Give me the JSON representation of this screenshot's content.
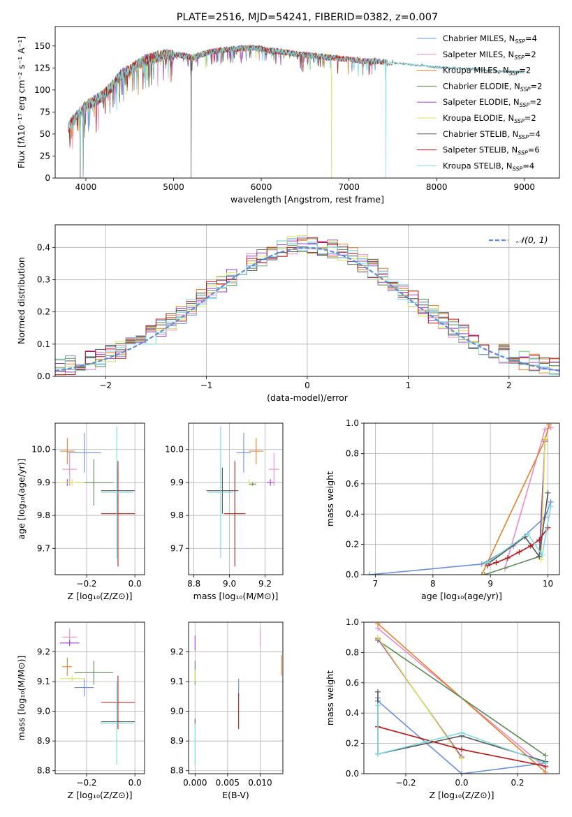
{
  "colors": {
    "chabrier_miles": "#6a8fd8",
    "salpeter_miles": "#e98bc3",
    "kroupa_miles": "#e0812b",
    "chabrier_elodie": "#5a8a55",
    "salpeter_elodie": "#9b3fc8",
    "kroupa_elodie": "#d8e25a",
    "chabrier_stelib": "#555555",
    "salpeter_stelib": "#b21a1a",
    "kroupa_stelib": "#7fd8e0"
  },
  "chart_data": [
    {
      "id": "spectrum",
      "type": "line",
      "title": "PLATE=2516, MJD=54241, FIBERID=0382, z=0.007",
      "xlabel": "wavelength [Angstrom, rest frame]",
      "ylabel": "Flux [fλ10⁻¹⁷ erg cm⁻² s⁻¹ A⁻¹]",
      "xlim": [
        3650,
        9400
      ],
      "ylim": [
        0,
        172
      ],
      "xticks": [
        4000,
        5000,
        6000,
        7000,
        8000,
        9000
      ],
      "yticks": [
        0,
        25,
        50,
        75,
        100,
        125,
        150
      ],
      "grid": false,
      "legend_position": "top-right",
      "series": [
        {
          "name": "Chabrier MILES, N_SSP=4",
          "key": "chabrier_miles",
          "x_range": [
            3800,
            7400
          ]
        },
        {
          "name": "Salpeter MILES, N_SSP=2",
          "key": "salpeter_miles",
          "x_range": [
            3800,
            7400
          ]
        },
        {
          "name": "Kroupa MILES, N_SSP=2",
          "key": "kroupa_miles",
          "x_range": [
            3800,
            7450
          ]
        },
        {
          "name": "Chabrier ELODIE, N_SSP=2",
          "key": "chabrier_elodie",
          "x_range": [
            3900,
            6800
          ]
        },
        {
          "name": "Salpeter ELODIE, N_SSP=2",
          "key": "salpeter_elodie",
          "x_range": [
            3900,
            6800
          ]
        },
        {
          "name": "Kroupa ELODIE, N_SSP=2",
          "key": "kroupa_elodie",
          "x_range": [
            3900,
            6800
          ]
        },
        {
          "name": "Chabrier STELIB, N_SSP=4",
          "key": "chabrier_stelib",
          "x_range": [
            3800,
            9000
          ]
        },
        {
          "name": "Salpeter STELIB, N_SSP=6",
          "key": "salpeter_stelib",
          "x_range": [
            3800,
            7400
          ]
        },
        {
          "name": "Kroupa STELIB, N_SSP=4",
          "key": "kroupa_stelib",
          "x_range": [
            3800,
            9000
          ]
        }
      ],
      "continuum": [
        [
          3800,
          58
        ],
        [
          3900,
          72
        ],
        [
          4000,
          82
        ],
        [
          4100,
          88
        ],
        [
          4200,
          95
        ],
        [
          4300,
          105
        ],
        [
          4400,
          118
        ],
        [
          4500,
          123
        ],
        [
          4600,
          130
        ],
        [
          4700,
          135
        ],
        [
          4800,
          138
        ],
        [
          4900,
          140
        ],
        [
          5000,
          140
        ],
        [
          5100,
          140
        ],
        [
          5200,
          137
        ],
        [
          5300,
          140
        ],
        [
          5400,
          143
        ],
        [
          5500,
          145
        ],
        [
          5600,
          146
        ],
        [
          5700,
          147
        ],
        [
          5800,
          148
        ],
        [
          5900,
          148
        ],
        [
          6000,
          147
        ],
        [
          6100,
          145
        ],
        [
          6200,
          144
        ],
        [
          6300,
          143
        ],
        [
          6400,
          141
        ],
        [
          6500,
          140
        ],
        [
          6600,
          139
        ],
        [
          6700,
          138
        ],
        [
          6800,
          137
        ],
        [
          6900,
          136
        ],
        [
          7000,
          135
        ],
        [
          7100,
          134
        ],
        [
          7200,
          133
        ],
        [
          7300,
          133
        ],
        [
          7400,
          132
        ],
        [
          7600,
          130
        ],
        [
          7800,
          128
        ],
        [
          8000,
          126
        ],
        [
          8200,
          125
        ],
        [
          8400,
          124
        ],
        [
          8600,
          122
        ],
        [
          8800,
          121
        ],
        [
          9000,
          120
        ]
      ],
      "dips": [
        [
          3934,
          0
        ],
        [
          3969,
          0
        ],
        [
          5200,
          0
        ],
        [
          6800,
          0
        ],
        [
          7420,
          0
        ]
      ]
    },
    {
      "id": "residuals",
      "type": "histogram",
      "xlabel": "(data-model)/error",
      "ylabel": "Normed distribution",
      "xlim": [
        -2.5,
        2.5
      ],
      "ylim": [
        0,
        0.47
      ],
      "xticks": [
        -2,
        -1,
        0,
        1,
        2
      ],
      "yticks": [
        0.0,
        0.1,
        0.2,
        0.3,
        0.4
      ],
      "grid": true,
      "legend_position": "top-right",
      "reference": {
        "label": "𝒩(0, 1)",
        "mean": 0,
        "sigma": 1
      }
    },
    {
      "id": "age-vs-Z",
      "type": "scatter",
      "xlabel": "Z [log₁₀(Z/Z⊙)]",
      "ylabel": "age  [log₁₀(age/yr)]",
      "xlim": [
        -0.33,
        0.04
      ],
      "ylim": [
        9.62,
        10.08
      ],
      "xticks": [
        -0.2,
        0.0
      ],
      "yticks": [
        9.7,
        9.8,
        9.9,
        10.0
      ],
      "grid": true,
      "points": [
        {
          "key": "chabrier_miles",
          "x": -0.21,
          "y": 9.99,
          "xerr": 0.07,
          "yerr": 0.06
        },
        {
          "key": "salpeter_miles",
          "x": -0.27,
          "y": 9.94,
          "xerr": 0.03,
          "yerr": 0.05
        },
        {
          "key": "kroupa_miles",
          "x": -0.28,
          "y": 9.995,
          "xerr": 0.03,
          "yerr": 0.04
        },
        {
          "key": "chabrier_elodie",
          "x": -0.17,
          "y": 9.9,
          "xerr": 0.08,
          "yerr": 0.07
        },
        {
          "key": "salpeter_elodie",
          "x": -0.28,
          "y": 9.9,
          "xerr": 0.02,
          "yerr": 0.01
        },
        {
          "key": "kroupa_elodie",
          "x": -0.26,
          "y": 9.9,
          "xerr": 0.05,
          "yerr": 0.01
        },
        {
          "key": "chabrier_stelib",
          "x": -0.07,
          "y": 9.875,
          "xerr": 0.07,
          "yerr": 0.07
        },
        {
          "key": "salpeter_stelib",
          "x": -0.07,
          "y": 9.805,
          "xerr": 0.07,
          "yerr": 0.16
        },
        {
          "key": "kroupa_stelib",
          "x": -0.075,
          "y": 9.87,
          "xerr": 0.065,
          "yerr": 0.2
        }
      ]
    },
    {
      "id": "age-vs-mass",
      "type": "scatter",
      "xlabel": "mass [log₁₀(M/M⊙)]",
      "ylabel": "",
      "xlim": [
        8.77,
        9.3
      ],
      "ylim": [
        9.62,
        10.08
      ],
      "xticks": [
        8.8,
        9.0,
        9.2
      ],
      "yticks": [
        9.7,
        9.8,
        9.9,
        10.0
      ],
      "grid": true,
      "points": [
        {
          "key": "chabrier_miles",
          "x": 9.08,
          "y": 9.99,
          "xerr": 0.04,
          "yerr": 0.06
        },
        {
          "key": "salpeter_miles",
          "x": 9.25,
          "y": 9.94,
          "xerr": 0.03,
          "yerr": 0.05
        },
        {
          "key": "kroupa_miles",
          "x": 9.15,
          "y": 9.995,
          "xerr": 0.04,
          "yerr": 0.04
        },
        {
          "key": "chabrier_elodie",
          "x": 9.13,
          "y": 9.895,
          "xerr": 0.02,
          "yerr": 0.005
        },
        {
          "key": "salpeter_elodie",
          "x": 9.23,
          "y": 9.9,
          "xerr": 0.02,
          "yerr": 0.01
        },
        {
          "key": "kroupa_elodie",
          "x": 9.11,
          "y": 9.9,
          "xerr": 0.01,
          "yerr": 0.01
        },
        {
          "key": "chabrier_stelib",
          "x": 8.96,
          "y": 9.875,
          "xerr": 0.09,
          "yerr": 0.07
        },
        {
          "key": "salpeter_stelib",
          "x": 9.03,
          "y": 9.805,
          "xerr": 0.06,
          "yerr": 0.16
        },
        {
          "key": "kroupa_stelib",
          "x": 8.95,
          "y": 9.87,
          "xerr": 0.07,
          "yerr": 0.2
        }
      ]
    },
    {
      "id": "massweight-vs-age",
      "type": "line",
      "xlabel": "age  [log₁₀(age/yr)]",
      "ylabel": "mass weight",
      "xlim": [
        6.8,
        10.2
      ],
      "ylim": [
        0,
        1.0
      ],
      "xticks": [
        7,
        8,
        9,
        10
      ],
      "yticks": [
        0.0,
        0.2,
        0.4,
        0.6,
        0.8,
        1.0
      ],
      "grid": true,
      "series": [
        {
          "key": "chabrier_miles",
          "x": [
            6.9,
            8.85,
            9.4,
            9.95,
            10.05
          ],
          "y": [
            0.0,
            0.07,
            0.19,
            0.38,
            0.48
          ]
        },
        {
          "key": "salpeter_miles",
          "x": [
            9.25,
            9.95,
            10.05
          ],
          "y": [
            0.04,
            0.96,
            0.97
          ]
        },
        {
          "key": "kroupa_miles",
          "x": [
            8.85,
            9.95,
            10.02
          ],
          "y": [
            0.0,
            0.89,
            0.99
          ]
        },
        {
          "key": "chabrier_elodie",
          "x": [
            8.9,
            9.85,
            9.95
          ],
          "y": [
            0.0,
            0.12,
            0.88
          ]
        },
        {
          "key": "salpeter_elodie",
          "x": [
            9.85,
            9.95
          ],
          "y": [
            0.12,
            0.88
          ]
        },
        {
          "key": "kroupa_elodie",
          "x": [
            9.88,
            9.95
          ],
          "y": [
            0.1,
            0.9
          ]
        },
        {
          "key": "chabrier_stelib",
          "x": [
            8.95,
            9.6,
            9.85,
            10.0
          ],
          "y": [
            0.07,
            0.25,
            0.12,
            0.54
          ]
        },
        {
          "key": "salpeter_stelib",
          "x": [
            8.95,
            9.1,
            9.3,
            9.5,
            9.7,
            9.85,
            10.0
          ],
          "y": [
            0.06,
            0.08,
            0.11,
            0.15,
            0.19,
            0.23,
            0.31
          ]
        },
        {
          "key": "kroupa_stelib",
          "x": [
            8.95,
            9.65,
            9.9,
            10.05
          ],
          "y": [
            0.08,
            0.27,
            0.13,
            0.45
          ]
        }
      ]
    },
    {
      "id": "mass-vs-Z",
      "type": "scatter",
      "xlabel": "Z [log₁₀(Z/Z⊙)]",
      "ylabel": "mass [log₁₀(M/M⊙)]",
      "xlim": [
        -0.33,
        0.04
      ],
      "ylim": [
        8.79,
        9.3
      ],
      "xticks": [
        -0.2,
        0.0
      ],
      "yticks": [
        8.8,
        8.9,
        9.0,
        9.1,
        9.2
      ],
      "grid": true,
      "points": [
        {
          "key": "chabrier_miles",
          "x": -0.21,
          "y": 9.08,
          "xerr": 0.04,
          "yerr": 0.03
        },
        {
          "key": "salpeter_miles",
          "x": -0.27,
          "y": 9.25,
          "xerr": 0.03,
          "yerr": 0.03
        },
        {
          "key": "kroupa_miles",
          "x": -0.28,
          "y": 9.15,
          "xerr": 0.02,
          "yerr": 0.03
        },
        {
          "key": "chabrier_elodie",
          "x": -0.17,
          "y": 9.13,
          "xerr": 0.08,
          "yerr": 0.04
        },
        {
          "key": "salpeter_elodie",
          "x": -0.27,
          "y": 9.23,
          "xerr": 0.04,
          "yerr": 0.01
        },
        {
          "key": "kroupa_elodie",
          "x": -0.26,
          "y": 9.11,
          "xerr": 0.05,
          "yerr": 0.01
        },
        {
          "key": "chabrier_stelib",
          "x": -0.07,
          "y": 8.965,
          "xerr": 0.07,
          "yerr": 0.01
        },
        {
          "key": "salpeter_stelib",
          "x": -0.07,
          "y": 9.03,
          "xerr": 0.07,
          "yerr": 0.09
        },
        {
          "key": "kroupa_stelib",
          "x": -0.075,
          "y": 8.96,
          "xerr": 0.07,
          "yerr": 0.14
        }
      ]
    },
    {
      "id": "mass-vs-EBV",
      "type": "scatter",
      "xlabel": "E(B-V)",
      "ylabel": "",
      "xlim": [
        -0.001,
        0.0135
      ],
      "ylim": [
        8.79,
        9.3
      ],
      "xticks": [
        0.0,
        0.005,
        0.01
      ],
      "xtick_labels": [
        "0.000",
        "0.005",
        "0.010"
      ],
      "yticks": [
        8.8,
        8.9,
        9.0,
        9.1,
        9.2
      ],
      "grid": true,
      "points": [
        {
          "key": "chabrier_miles",
          "x": 0.0067,
          "y": 9.08,
          "xerr": 0,
          "yerr": 0.03
        },
        {
          "key": "salpeter_miles",
          "x": 0.01,
          "y": 9.25,
          "xerr": 0,
          "yerr": 0.03
        },
        {
          "key": "kroupa_miles",
          "x": 0.0133,
          "y": 9.155,
          "xerr": 0,
          "yerr": 0.035
        },
        {
          "key": "chabrier_elodie",
          "x": 0.0,
          "y": 9.13,
          "xerr": 0,
          "yerr": 0.04
        },
        {
          "key": "salpeter_elodie",
          "x": 0.0,
          "y": 9.23,
          "xerr": 0,
          "yerr": 0.025
        },
        {
          "key": "kroupa_elodie",
          "x": 0.0,
          "y": 9.12,
          "xerr": 0,
          "yerr": 0.02
        },
        {
          "key": "chabrier_stelib",
          "x": 0.0,
          "y": 8.965,
          "xerr": 0,
          "yerr": 0.01
        },
        {
          "key": "salpeter_stelib",
          "x": 0.0067,
          "y": 9.0,
          "xerr": 0,
          "yerr": 0.06
        },
        {
          "key": "kroupa_stelib",
          "x": 0.0,
          "y": 8.89,
          "xerr": 0,
          "yerr": 0.07
        }
      ]
    },
    {
      "id": "massweight-vs-Z",
      "type": "line",
      "xlabel": "Z [log₁₀(Z/Z⊙)]",
      "ylabel": "mass weight",
      "xlim": [
        -0.35,
        0.35
      ],
      "ylim": [
        0,
        1.0
      ],
      "xticks": [
        -0.2,
        0.0,
        0.2
      ],
      "yticks": [
        0.0,
        0.2,
        0.4,
        0.6,
        0.8,
        1.0
      ],
      "grid": true,
      "series": [
        {
          "key": "chabrier_miles",
          "x": [
            -0.3,
            -0.3,
            0.0,
            0.3
          ],
          "y": [
            0.5,
            0.48,
            0.0,
            0.07
          ]
        },
        {
          "key": "salpeter_miles",
          "x": [
            -0.3,
            0.3
          ],
          "y": [
            0.96,
            0.04
          ]
        },
        {
          "key": "kroupa_miles",
          "x": [
            -0.3,
            0.3
          ],
          "y": [
            0.99,
            0.01
          ]
        },
        {
          "key": "chabrier_elodie",
          "x": [
            -0.3,
            0.3
          ],
          "y": [
            0.88,
            0.12
          ]
        },
        {
          "key": "salpeter_elodie",
          "x": [
            -0.3,
            0.0
          ],
          "y": [
            0.89,
            0.11
          ]
        },
        {
          "key": "kroupa_elodie",
          "x": [
            -0.3,
            0.0
          ],
          "y": [
            0.9,
            0.1
          ]
        },
        {
          "key": "chabrier_stelib",
          "x": [
            -0.3,
            -0.3,
            0.0,
            0.3
          ],
          "y": [
            0.54,
            0.13,
            0.25,
            0.08
          ]
        },
        {
          "key": "salpeter_stelib",
          "x": [
            -0.3,
            0.0,
            0.3
          ],
          "y": [
            0.31,
            0.16,
            0.05
          ]
        },
        {
          "key": "kroupa_stelib",
          "x": [
            -0.3,
            -0.3,
            0.0,
            0.3
          ],
          "y": [
            0.45,
            0.13,
            0.27,
            0.07
          ]
        }
      ]
    }
  ]
}
